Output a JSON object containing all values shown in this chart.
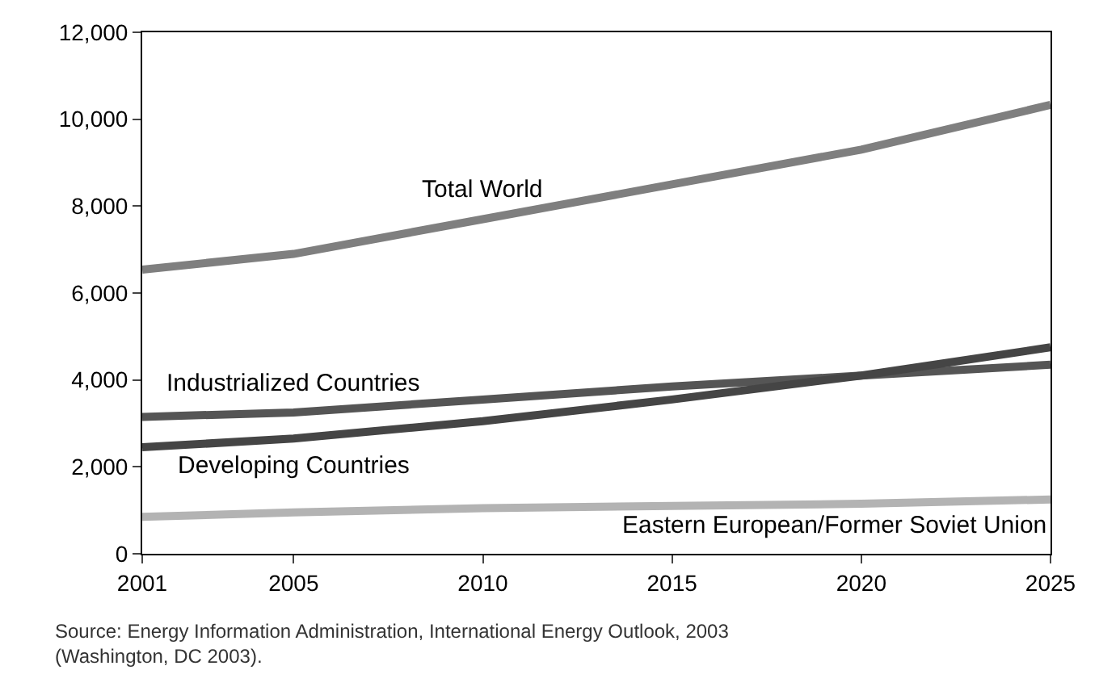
{
  "chart_data": {
    "type": "line",
    "x": [
      2001,
      2005,
      2010,
      2015,
      2020,
      2025
    ],
    "series": [
      {
        "name": "Total World",
        "color": "#7f7f7f",
        "values": [
          6540,
          6900,
          7700,
          8500,
          9300,
          10330
        ]
      },
      {
        "name": "Industrialized Countries",
        "color": "#555555",
        "values": [
          3150,
          3250,
          3550,
          3850,
          4100,
          4350
        ]
      },
      {
        "name": "Developing Countries",
        "color": "#454545",
        "values": [
          2450,
          2650,
          3050,
          3550,
          4100,
          4750
        ]
      },
      {
        "name": "Eastern European/Former Soviet Union",
        "color": "#b3b3b3",
        "values": [
          850,
          950,
          1050,
          1100,
          1150,
          1250
        ]
      }
    ],
    "xlim": [
      2001,
      2025
    ],
    "xticks": [
      2001,
      2005,
      2010,
      2015,
      2020,
      2025
    ],
    "ylim": [
      0,
      12000
    ],
    "yticks": [
      0,
      {
        "value": 2000,
        "label": "2,000"
      },
      {
        "value": 4000,
        "label": "4,000"
      },
      {
        "value": 6000,
        "label": "6,000"
      },
      {
        "value": 8000,
        "label": "8,000"
      },
      {
        "value": 10000,
        "label": "10,000"
      },
      {
        "value": 12000,
        "label": "12,000"
      }
    ],
    "annotations": [
      "Source: Energy Information Administration, International Energy Outlook, 2003 (Washington, DC 2003)."
    ],
    "legend": false,
    "marker": "none",
    "line_style": "solid"
  }
}
